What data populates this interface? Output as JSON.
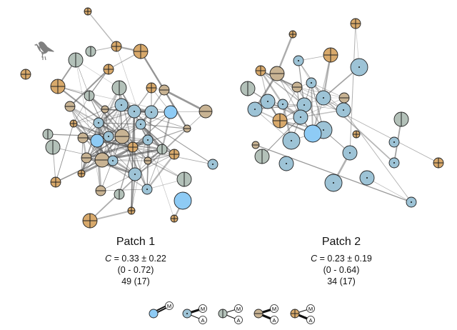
{
  "patches": [
    {
      "title": "Patch 1",
      "c_symbol": "C",
      "c_value": "= 0.33 ± 0.22",
      "range": "(0 - 0.72)",
      "count": "49 (17)"
    },
    {
      "title": "Patch 2",
      "c_symbol": "C",
      "c_value": "= 0.23 ± 0.19",
      "range": "(0 - 0.64)",
      "count": "34 (17)"
    }
  ],
  "node_types": {
    "bright": {
      "fill": "#8ecbf5",
      "mark": "none"
    },
    "dot": {
      "fill": "#9dc3d6",
      "mark": "dot"
    },
    "vertical": {
      "fill": "#b3c1b9",
      "mark": "vertical-line"
    },
    "horizontal": {
      "fill": "#c8b393",
      "mark": "horizontal-line"
    },
    "cross": {
      "fill": "#d8a96b",
      "mark": "cross"
    }
  },
  "legend": {
    "m_label": "M",
    "a_label": "A",
    "items": [
      {
        "type": "bright",
        "m_link": "double-thick",
        "a_link": "none"
      },
      {
        "type": "dot",
        "m_link": "thick",
        "a_link": "thin"
      },
      {
        "type": "vertical",
        "m_link": "thin",
        "a_link": "thin"
      },
      {
        "type": "horizontal",
        "m_link": "thick",
        "a_link": "thick"
      },
      {
        "type": "cross",
        "m_link": "thin",
        "a_link": "thick"
      }
    ]
  },
  "icons": {
    "bird": "bird-silhouette-icon"
  }
}
